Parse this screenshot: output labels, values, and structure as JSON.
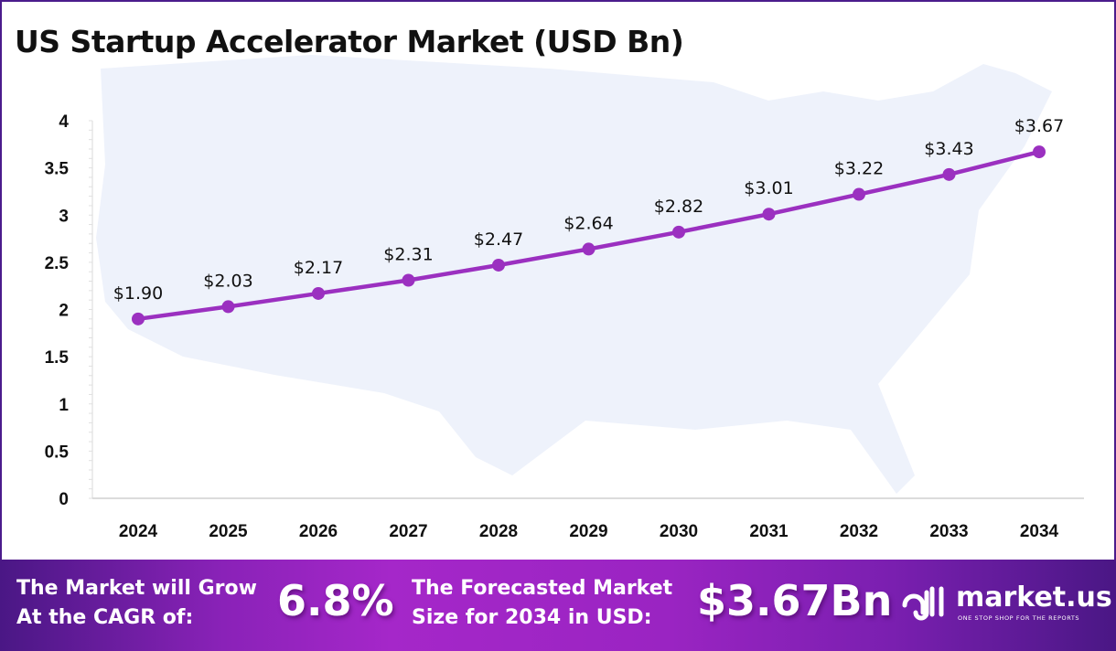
{
  "title": "US Startup Accelerator Market (USD Bn)",
  "colors": {
    "line": "#9b30c0",
    "border": "#4b1c8c",
    "map": "#eef2fb"
  },
  "chart_data": {
    "type": "line",
    "title": "US Startup Accelerator Market (USD Bn)",
    "categories": [
      "2024",
      "2025",
      "2026",
      "2027",
      "2028",
      "2029",
      "2030",
      "2031",
      "2032",
      "2033",
      "2034"
    ],
    "values": [
      1.9,
      2.03,
      2.17,
      2.31,
      2.47,
      2.64,
      2.82,
      3.01,
      3.22,
      3.43,
      3.67
    ],
    "data_labels": [
      "$1.90",
      "$2.03",
      "$2.17",
      "$2.31",
      "$2.47",
      "$2.64",
      "$2.82",
      "$3.01",
      "$3.22",
      "$3.43",
      "$3.67"
    ],
    "yticks": [
      "0",
      "0.5",
      "1",
      "1.5",
      "2",
      "2.5",
      "3",
      "3.5",
      "4"
    ],
    "ylim": [
      0,
      4
    ],
    "grid": false,
    "xlabel": "",
    "ylabel": ""
  },
  "banner": {
    "cagr_label_1": "The Market will Grow",
    "cagr_label_2": "At the CAGR of:",
    "cagr_value": "6.8%",
    "forecast_label_1": "The Forecasted Market",
    "forecast_label_2": "Size for 2034 in USD:",
    "forecast_value": "$3.67Bn",
    "logo_text": "market.us",
    "logo_tagline": "ONE STOP SHOP FOR THE REPORTS"
  }
}
